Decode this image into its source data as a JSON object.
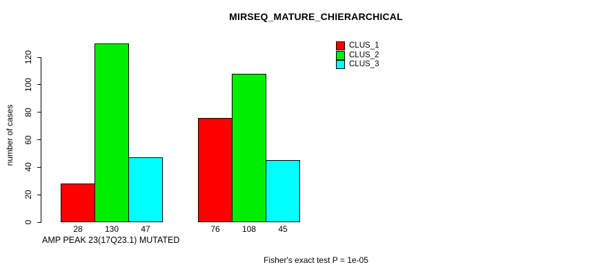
{
  "chart_data": {
    "type": "bar",
    "title": "MIRSEQ_MATURE_CHIERARCHICAL",
    "ylabel": "number of cases",
    "xlabel": "AMP PEAK 23(17Q23.1) MUTATED",
    "annotation": "Fisher's exact test P = 1e-05",
    "categories": [
      "",
      ""
    ],
    "series": [
      {
        "name": "CLUS_1",
        "color": "#ff0000",
        "values": [
          28,
          76
        ]
      },
      {
        "name": "CLUS_2",
        "color": "#00ee00",
        "values": [
          130,
          108
        ]
      },
      {
        "name": "CLUS_3",
        "color": "#00ffff",
        "values": [
          47,
          45
        ]
      }
    ],
    "bar_value_labels": [
      [
        28,
        130,
        47
      ],
      [
        76,
        108,
        45
      ]
    ],
    "yticks": [
      0,
      20,
      40,
      60,
      80,
      100,
      120
    ],
    "ylim": [
      0,
      132
    ],
    "grid": false,
    "legend_position": "top-right-outside",
    "axis_color": "#000000",
    "text_color": "#000000",
    "background_color": "#ffffff"
  }
}
